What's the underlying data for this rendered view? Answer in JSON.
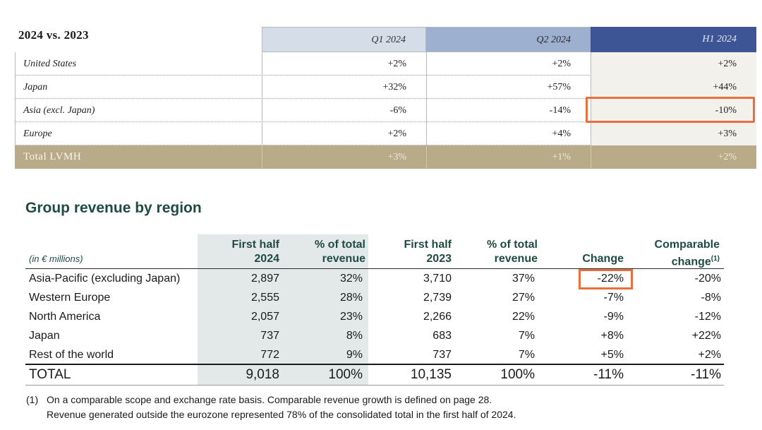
{
  "table1": {
    "title": "2024 vs. 2023",
    "columns": [
      "Q1 2024",
      "Q2 2024",
      "H1 2024"
    ],
    "rows": [
      {
        "label": "United States",
        "q1": "+2%",
        "q2": "+2%",
        "h1": "+2%"
      },
      {
        "label": "Japan",
        "q1": "+32%",
        "q2": "+57%",
        "h1": "+44%"
      },
      {
        "label": "Asia (excl. Japan)",
        "q1": "-6%",
        "q2": "-14%",
        "h1": "-10%"
      },
      {
        "label": "Europe",
        "q1": "+2%",
        "q2": "+4%",
        "h1": "+3%"
      }
    ],
    "total": {
      "label": "Total LVMH",
      "q1": "+3%",
      "q2": "+1%",
      "h1": "+2%"
    }
  },
  "table2": {
    "title": "Group revenue by region",
    "units": "(in € millions)",
    "headers": {
      "fh24_l1": "First half",
      "fh24_l2": "2024",
      "p24_l1": "% of total",
      "p24_l2": "revenue",
      "fh23_l1": "First half",
      "fh23_l2": "2023",
      "p23_l1": "% of total",
      "p23_l2": "revenue",
      "chg": "Change",
      "cmp_l1": "Comparable",
      "cmp_l2": "change",
      "cmp_sup": "(1)"
    },
    "rows": [
      {
        "label": "Asia-Pacific (excluding Japan)",
        "fh24": "2,897",
        "p24": "32%",
        "fh23": "3,710",
        "p23": "37%",
        "chg": "-22%",
        "cmp": "-20%"
      },
      {
        "label": "Western Europe",
        "fh24": "2,555",
        "p24": "28%",
        "fh23": "2,739",
        "p23": "27%",
        "chg": "-7%",
        "cmp": "-8%"
      },
      {
        "label": "North America",
        "fh24": "2,057",
        "p24": "23%",
        "fh23": "2,266",
        "p23": "22%",
        "chg": "-9%",
        "cmp": "-12%"
      },
      {
        "label": "Japan",
        "fh24": "737",
        "p24": "8%",
        "fh23": "683",
        "p23": "7%",
        "chg": "+8%",
        "cmp": "+22%"
      },
      {
        "label": "Rest of the world",
        "fh24": "772",
        "p24": "9%",
        "fh23": "737",
        "p23": "7%",
        "chg": "+5%",
        "cmp": "+2%"
      }
    ],
    "total": {
      "label": "TOTAL",
      "fh24": "9,018",
      "p24": "100%",
      "fh23": "10,135",
      "p23": "100%",
      "chg": "-11%",
      "cmp": "-11%"
    }
  },
  "footnote": {
    "mark": "(1)",
    "line1": "On a comparable scope and exchange rate basis. Comparable revenue growth is defined on page 28.",
    "line2": "Revenue generated outside the eurozone represented 78% of the consolidated total in the first half of 2024."
  },
  "colors": {
    "highlight": "#e8703f",
    "accent_green": "#1f4b44",
    "h1_header": "#3d5594",
    "total_row": "#b9ab88"
  }
}
